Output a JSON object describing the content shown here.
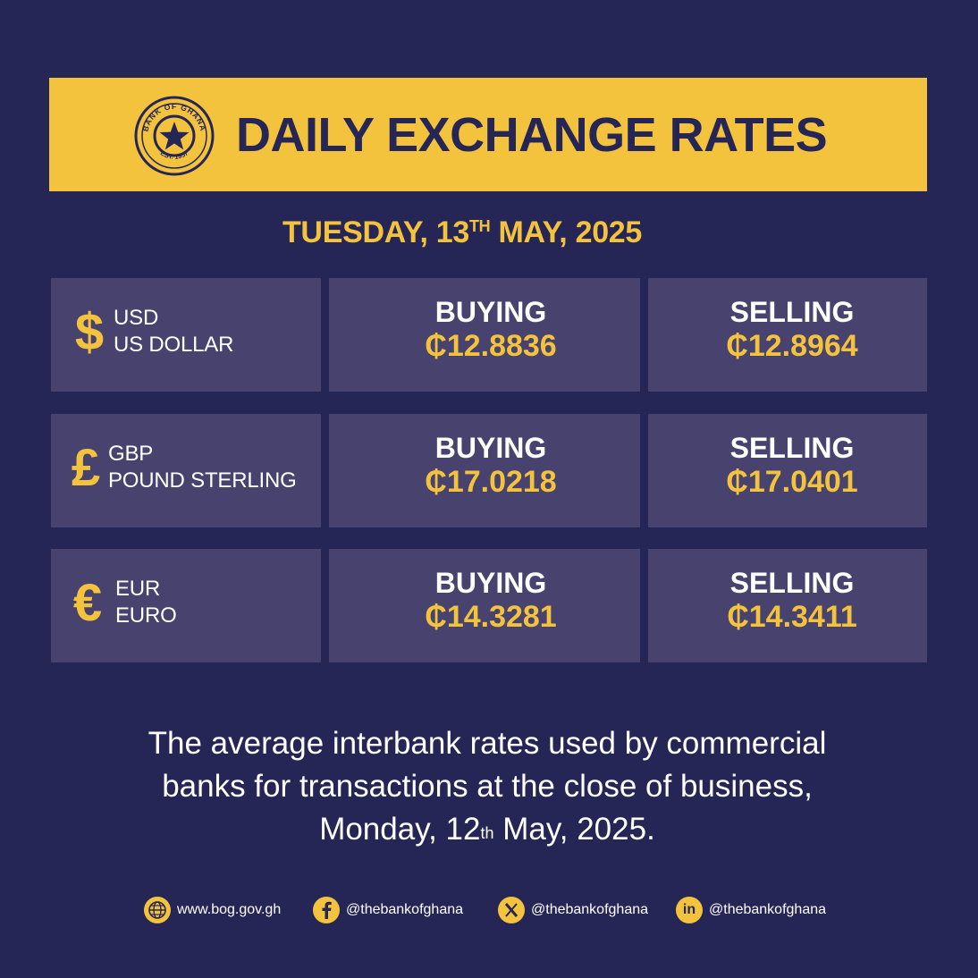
{
  "header": {
    "title": "DAILY EXCHANGE RATES",
    "seal": {
      "top_text": "BANK OF GHANA",
      "bottom_text": "EST. 1957"
    }
  },
  "date": {
    "weekday": "TUESDAY,",
    "day": "13",
    "day_suffix": "TH",
    "month_year": "MAY, 2025"
  },
  "rates": [
    {
      "symbol": "$",
      "code": "USD",
      "name": "US DOLLAR",
      "buying_label": "BUYING",
      "buying": "₵12.8836",
      "selling_label": "SELLING",
      "selling": "₵12.8964"
    },
    {
      "symbol": "£",
      "code": "GBP",
      "name": "POUND STERLING",
      "buying_label": "BUYING",
      "buying": "₵17.0218",
      "selling_label": "SELLING",
      "selling": "₵17.0401"
    },
    {
      "symbol": "€",
      "code": "EUR",
      "name": "EURO",
      "buying_label": "BUYING",
      "buying": "₵14.3281",
      "selling_label": "SELLING",
      "selling": "₵14.3411"
    }
  ],
  "footnote": {
    "line1": "The average interbank rates used by commercial",
    "line2": "banks for transactions at the close of business,",
    "line3_pre": "Monday, 12",
    "line3_sup": "th",
    "line3_post": " May, 2025."
  },
  "social": [
    {
      "icon": "globe-icon",
      "text": "www.bog.gov.gh"
    },
    {
      "icon": "facebook-icon",
      "text": "@thebankofghana"
    },
    {
      "icon": "x-icon",
      "text": "@thebankofghana"
    },
    {
      "icon": "linkedin-icon",
      "text": "@thebankofghana"
    }
  ],
  "colors": {
    "background": "#262656",
    "accent": "#f4c33d",
    "panel": "#48426f",
    "text": "#ffffff"
  }
}
